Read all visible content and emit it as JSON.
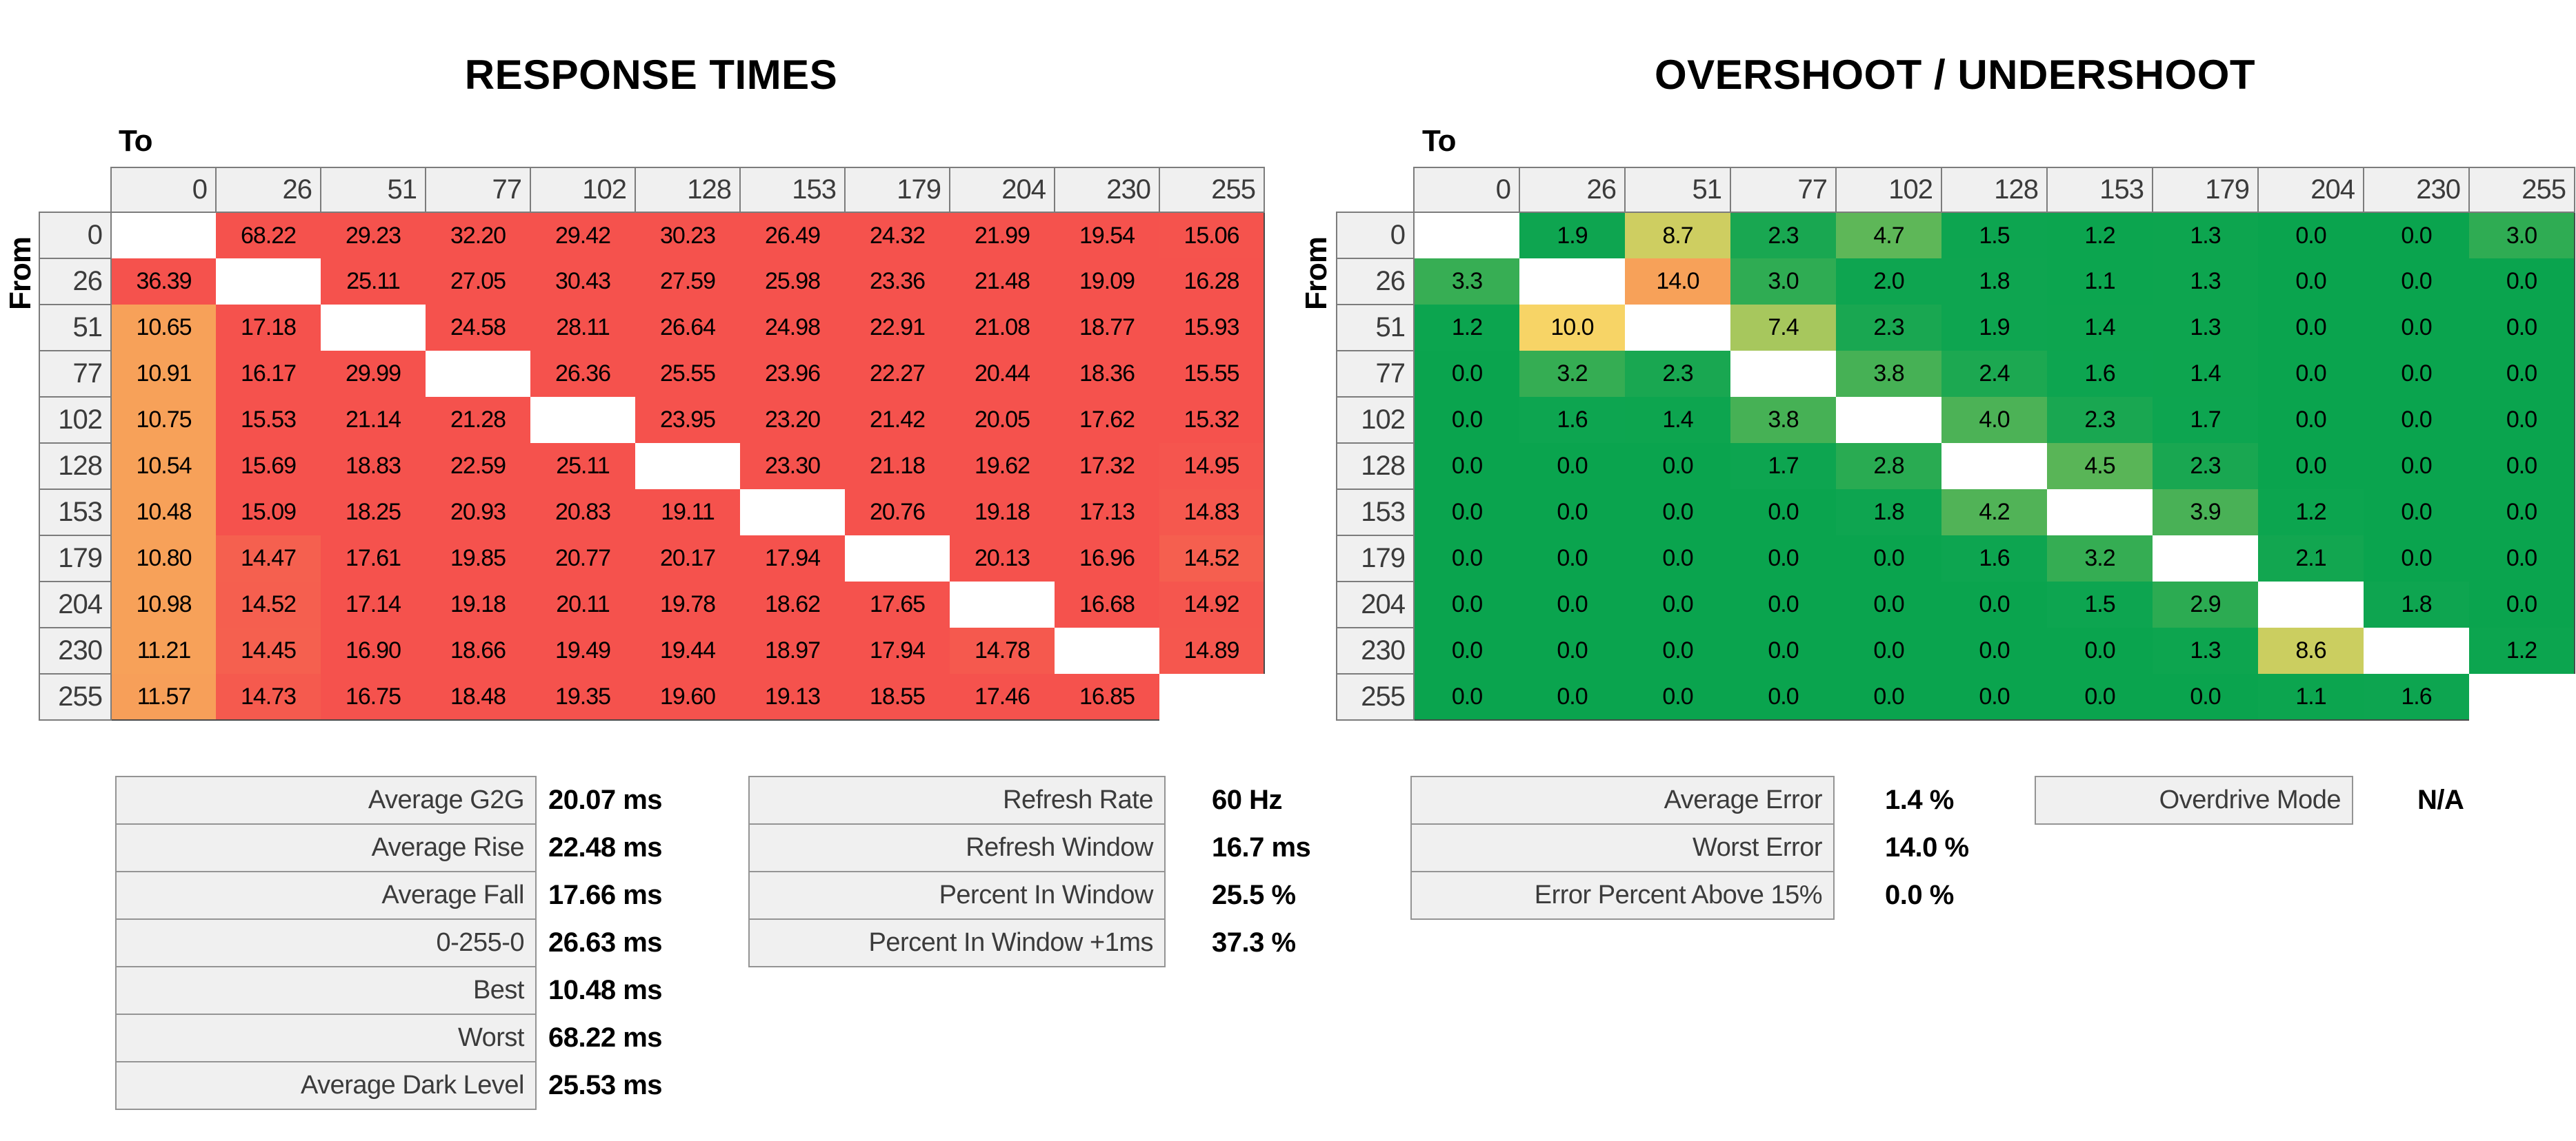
{
  "chart_data": [
    {
      "type": "heatmap",
      "title": "RESPONSE TIMES",
      "x_label": "To",
      "y_label": "From",
      "unit": "ms",
      "decimals": 2,
      "x": [
        "0",
        "26",
        "51",
        "77",
        "102",
        "128",
        "153",
        "179",
        "204",
        "230",
        "255"
      ],
      "y": [
        "0",
        "26",
        "51",
        "77",
        "102",
        "128",
        "153",
        "179",
        "204",
        "230",
        "255"
      ],
      "values": [
        [
          null,
          68.22,
          29.23,
          32.2,
          29.42,
          30.23,
          26.49,
          24.32,
          21.99,
          19.54,
          15.06
        ],
        [
          36.39,
          null,
          25.11,
          27.05,
          30.43,
          27.59,
          25.98,
          23.36,
          21.48,
          19.09,
          16.28
        ],
        [
          10.65,
          17.18,
          null,
          24.58,
          28.11,
          26.64,
          24.98,
          22.91,
          21.08,
          18.77,
          15.93
        ],
        [
          10.91,
          16.17,
          29.99,
          null,
          26.36,
          25.55,
          23.96,
          22.27,
          20.44,
          18.36,
          15.55
        ],
        [
          10.75,
          15.53,
          21.14,
          21.28,
          null,
          23.95,
          23.2,
          21.42,
          20.05,
          17.62,
          15.32
        ],
        [
          10.54,
          15.69,
          18.83,
          22.59,
          25.11,
          null,
          23.3,
          21.18,
          19.62,
          17.32,
          14.95
        ],
        [
          10.48,
          15.09,
          18.25,
          20.93,
          20.83,
          19.11,
          null,
          20.76,
          19.18,
          17.13,
          14.83
        ],
        [
          10.8,
          14.47,
          17.61,
          19.85,
          20.77,
          20.17,
          17.94,
          null,
          20.13,
          16.96,
          14.52
        ],
        [
          10.98,
          14.52,
          17.14,
          19.18,
          20.11,
          19.78,
          18.62,
          17.65,
          null,
          16.68,
          14.92
        ],
        [
          11.21,
          14.45,
          16.9,
          18.66,
          19.49,
          19.44,
          18.97,
          17.94,
          14.78,
          null,
          14.89
        ],
        [
          11.57,
          14.73,
          16.75,
          18.48,
          19.35,
          19.6,
          19.13,
          18.55,
          17.46,
          16.85,
          null
        ]
      ],
      "color_scale": [
        [
          11.5,
          "#F7A159"
        ],
        [
          15.1,
          "#F5524D"
        ]
      ]
    },
    {
      "type": "heatmap",
      "title": "OVERSHOOT / UNDERSHOOT",
      "x_label": "To",
      "y_label": "From",
      "unit": "%",
      "decimals": 1,
      "x": [
        "0",
        "26",
        "51",
        "77",
        "102",
        "128",
        "153",
        "179",
        "204",
        "230",
        "255"
      ],
      "y": [
        "0",
        "26",
        "51",
        "77",
        "102",
        "128",
        "153",
        "179",
        "204",
        "230",
        "255"
      ],
      "values": [
        [
          null,
          1.9,
          8.7,
          2.3,
          4.7,
          1.5,
          1.2,
          1.3,
          0.0,
          0.0,
          3.0
        ],
        [
          3.3,
          null,
          14.0,
          3.0,
          2.0,
          1.8,
          1.1,
          1.3,
          0.0,
          0.0,
          0.0
        ],
        [
          1.2,
          10.0,
          null,
          7.4,
          2.3,
          1.9,
          1.4,
          1.3,
          0.0,
          0.0,
          0.0
        ],
        [
          0.0,
          3.2,
          2.3,
          null,
          3.8,
          2.4,
          1.6,
          1.4,
          0.0,
          0.0,
          0.0
        ],
        [
          0.0,
          1.6,
          1.4,
          3.8,
          null,
          4.0,
          2.3,
          1.7,
          0.0,
          0.0,
          0.0
        ],
        [
          0.0,
          0.0,
          0.0,
          1.7,
          2.8,
          null,
          4.5,
          2.3,
          0.0,
          0.0,
          0.0
        ],
        [
          0.0,
          0.0,
          0.0,
          0.0,
          1.8,
          4.2,
          null,
          3.9,
          1.2,
          0.0,
          0.0
        ],
        [
          0.0,
          0.0,
          0.0,
          0.0,
          0.0,
          1.6,
          3.2,
          null,
          2.1,
          0.0,
          0.0
        ],
        [
          0.0,
          0.0,
          0.0,
          0.0,
          0.0,
          0.0,
          1.5,
          2.9,
          null,
          1.8,
          0.0
        ],
        [
          0.0,
          0.0,
          0.0,
          0.0,
          0.0,
          0.0,
          0.0,
          1.3,
          8.6,
          null,
          1.2
        ],
        [
          0.0,
          0.0,
          0.0,
          0.0,
          0.0,
          0.0,
          0.0,
          0.0,
          1.1,
          1.6,
          null
        ]
      ],
      "color_scale": [
        [
          0,
          "#0AA44E"
        ],
        [
          2,
          "#0EA550"
        ],
        [
          2.5,
          "#20A951"
        ],
        [
          4,
          "#4CB256"
        ],
        [
          6,
          "#80BF5B"
        ],
        [
          8,
          "#B8CB5E"
        ],
        [
          10,
          "#F7D466"
        ],
        [
          14,
          "#F7A159"
        ],
        [
          18,
          "#F4514D"
        ]
      ]
    }
  ],
  "stats": {
    "response": {
      "rows": [
        {
          "label": "Average G2G",
          "value": "20.07 ms"
        },
        {
          "label": "Average Rise",
          "value": "22.48 ms"
        },
        {
          "label": "Average Fall",
          "value": "17.66 ms"
        },
        {
          "label": "0-255-0",
          "value": "26.63 ms"
        },
        {
          "label": "Best",
          "value": "10.48 ms"
        },
        {
          "label": "Worst",
          "value": "68.22 ms"
        },
        {
          "label": "Average Dark Level",
          "value": "25.53 ms"
        }
      ]
    },
    "timing": {
      "rows": [
        {
          "label": "Refresh Rate",
          "value": "60 Hz"
        },
        {
          "label": "Refresh Window",
          "value": "16.7 ms"
        },
        {
          "label": "Percent In Window",
          "value": "25.5 %"
        },
        {
          "label": "Percent In Window +1ms",
          "value": "37.3 %"
        }
      ]
    },
    "error": {
      "rows": [
        {
          "label": "Average Error",
          "value": "1.4 %"
        },
        {
          "label": "Worst Error",
          "value": "14.0 %"
        },
        {
          "label": "Error Percent Above 15%",
          "value": "0.0 %"
        }
      ]
    },
    "overdrive": {
      "rows": [
        {
          "label": "Overdrive Mode",
          "value": "N/A"
        }
      ]
    }
  },
  "colors": {
    "response_fast": "#F7A159",
    "response_slow": "#F5524D",
    "overshoot_good": "#0AA44E",
    "overshoot_bad": "#F7A159",
    "header_fill": "#F0F0F0",
    "header_border": "#7C7C7C",
    "blank_cell": "#FFFFFF"
  }
}
